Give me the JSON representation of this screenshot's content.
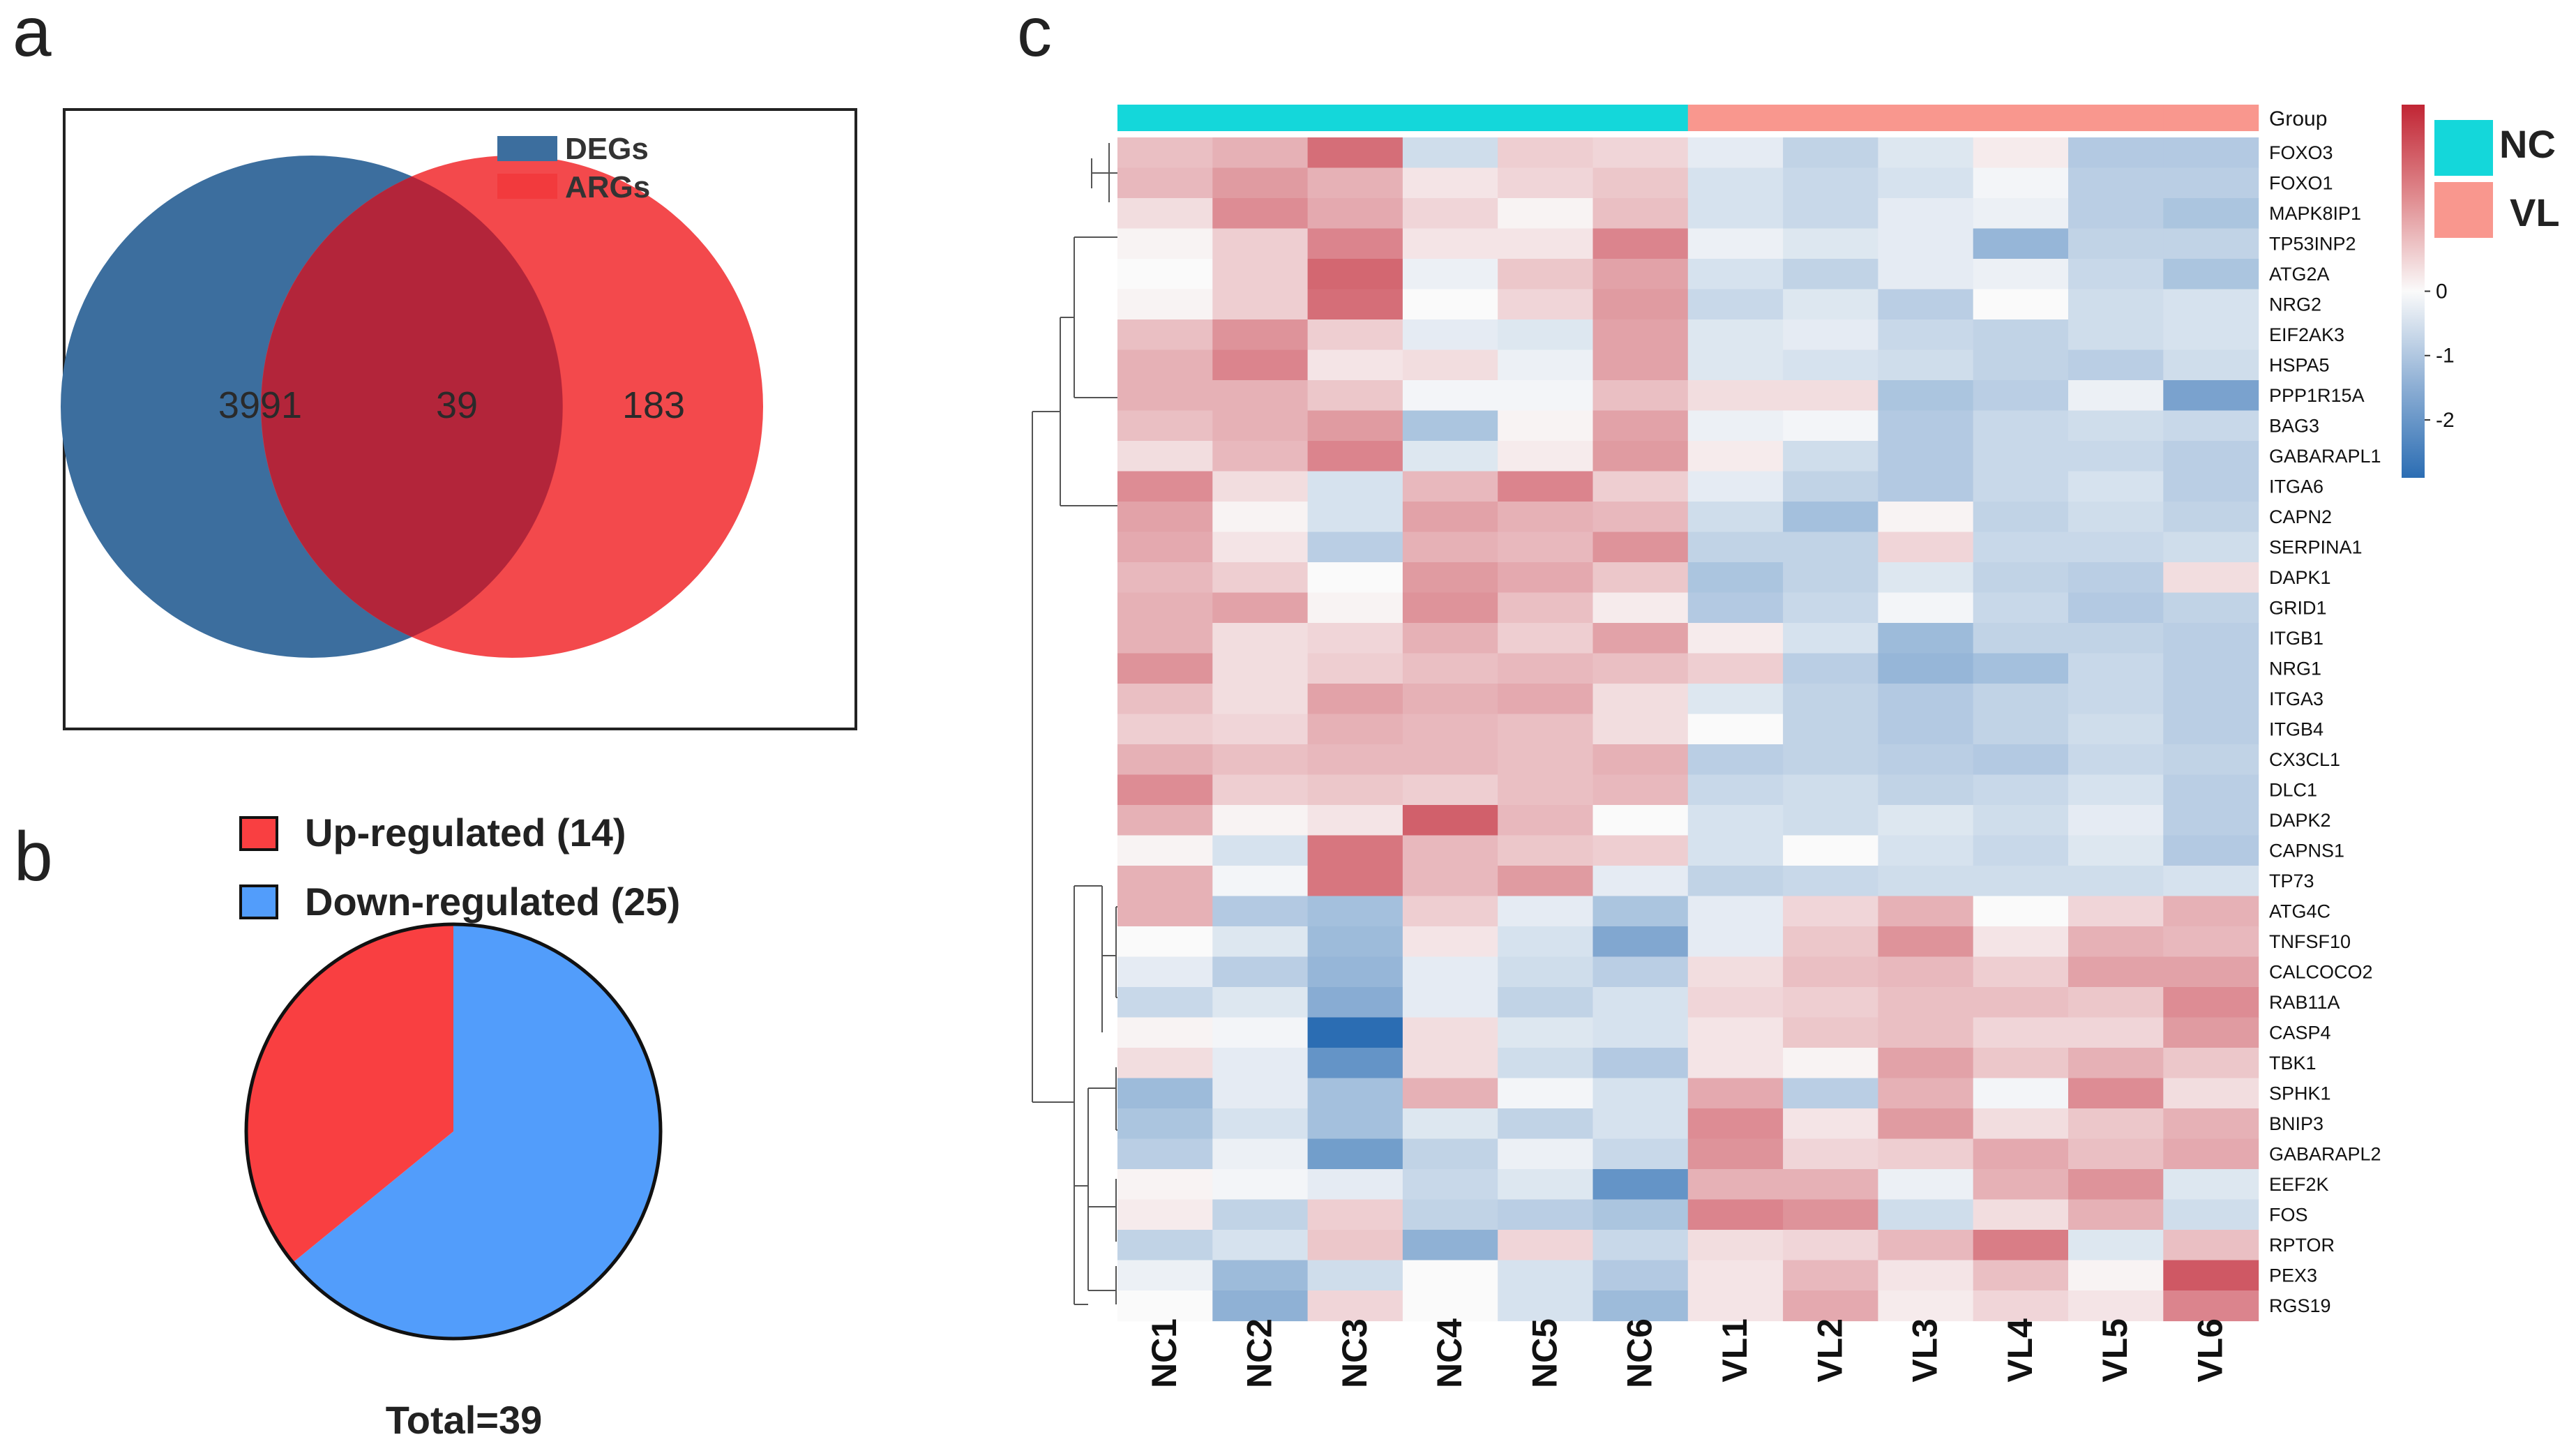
{
  "panels": {
    "a": "a",
    "b": "b",
    "c": "c"
  },
  "chart_data": [
    {
      "type": "venn",
      "panel": "a",
      "sets": [
        {
          "name": "DEGs",
          "color": "#3C6E9E",
          "only": 3991
        },
        {
          "name": "ARGs",
          "color": "#F23A3D",
          "only": 183
        }
      ],
      "intersection": 39
    },
    {
      "type": "pie",
      "panel": "b",
      "labels": [
        "Up-regulated (14)",
        "Down-regulated (25)"
      ],
      "values": [
        14,
        25
      ],
      "colors": [
        "#F93F41",
        "#529DFB"
      ],
      "total_label": "Total=39"
    },
    {
      "type": "heatmap",
      "panel": "c",
      "columns": [
        "NC1",
        "NC2",
        "NC3",
        "NC4",
        "NC5",
        "NC6",
        "VL1",
        "VL2",
        "VL3",
        "VL4",
        "VL5",
        "VL6"
      ],
      "column_groups": [
        "NC",
        "NC",
        "NC",
        "NC",
        "NC",
        "NC",
        "VL",
        "VL",
        "VL",
        "VL",
        "VL",
        "VL"
      ],
      "group_label": "Group",
      "groups": [
        {
          "name": "NC",
          "color": "#14D7DA"
        },
        {
          "name": "VL",
          "color": "#F9978E"
        }
      ],
      "colorbar": {
        "range": [
          -2.9,
          2.9
        ],
        "ticks": [
          0,
          -1,
          -2
        ],
        "tick_labels": [
          "0",
          "-1",
          "-2"
        ]
      },
      "rows": [
        "FOXO3",
        "FOXO1",
        "MAPK8IP1",
        "TP53INP2",
        "ATG2A",
        "NRG2",
        "EIF2AK3",
        "HSPA5",
        "PPP1R15A",
        "BAG3",
        "GABARAPL1",
        "ITGA6",
        "CAPN2",
        "SERPINA1",
        "DAPK1",
        "GRID1",
        "ITGB1",
        "NRG1",
        "ITGA3",
        "ITGB4",
        "CX3CL1",
        "DLC1",
        "DAPK2",
        "CAPNS1",
        "TP73",
        "ATG4C",
        "TNFSF10",
        "CALCOCO2",
        "RAB11A",
        "CASP4",
        "TBK1",
        "SPHK1",
        "BNIP3",
        "GABARAPL2",
        "EEF2K",
        "FOS",
        "RPTOR",
        "PEX3",
        "RGS19"
      ],
      "values": [
        [
          0.8,
          1.0,
          1.9,
          -0.6,
          0.6,
          0.5,
          -0.3,
          -0.8,
          -0.4,
          0.2,
          -1.0,
          -1.0
        ],
        [
          0.9,
          1.3,
          1.0,
          0.3,
          0.5,
          0.7,
          -0.5,
          -0.7,
          -0.5,
          -0.1,
          -0.9,
          -0.9
        ],
        [
          0.4,
          1.5,
          1.1,
          0.5,
          0.1,
          0.8,
          -0.5,
          -0.7,
          -0.3,
          -0.2,
          -0.9,
          -1.1
        ],
        [
          0.1,
          0.6,
          1.6,
          0.3,
          0.3,
          1.6,
          -0.2,
          -0.4,
          -0.3,
          -1.4,
          -0.8,
          -0.8
        ],
        [
          0.0,
          0.6,
          2.0,
          -0.2,
          0.7,
          1.2,
          -0.5,
          -0.8,
          -0.3,
          -0.2,
          -0.7,
          -1.1
        ],
        [
          0.1,
          0.6,
          1.9,
          0.0,
          0.5,
          1.3,
          -0.7,
          -0.4,
          -0.9,
          0.0,
          -0.6,
          -0.5
        ],
        [
          0.8,
          1.4,
          0.6,
          -0.3,
          -0.4,
          1.2,
          -0.4,
          -0.3,
          -0.7,
          -0.8,
          -0.6,
          -0.5
        ],
        [
          1.0,
          1.6,
          0.3,
          0.4,
          -0.2,
          1.2,
          -0.4,
          -0.5,
          -0.6,
          -0.8,
          -0.9,
          -0.6
        ],
        [
          1.0,
          1.0,
          0.7,
          -0.1,
          -0.1,
          0.8,
          0.4,
          0.4,
          -1.1,
          -0.9,
          -0.2,
          -1.8
        ],
        [
          0.8,
          1.0,
          1.3,
          -1.1,
          0.1,
          1.2,
          -0.2,
          -0.1,
          -1.0,
          -0.7,
          -0.6,
          -0.7
        ],
        [
          0.4,
          0.9,
          1.6,
          -0.4,
          0.2,
          1.3,
          0.2,
          -0.6,
          -1.0,
          -0.7,
          -0.7,
          -0.9
        ],
        [
          1.5,
          0.4,
          -0.5,
          0.9,
          1.6,
          0.6,
          -0.3,
          -0.8,
          -1.0,
          -0.7,
          -0.5,
          -0.9
        ],
        [
          1.2,
          0.1,
          -0.5,
          1.2,
          1.0,
          0.9,
          -0.6,
          -1.2,
          0.1,
          -0.8,
          -0.6,
          -0.8
        ],
        [
          1.1,
          0.3,
          -0.9,
          1.0,
          0.9,
          1.4,
          -0.8,
          -0.8,
          0.5,
          -0.7,
          -0.7,
          -0.6
        ],
        [
          0.9,
          0.6,
          0.0,
          1.3,
          1.1,
          0.7,
          -1.1,
          -0.8,
          -0.4,
          -0.8,
          -0.9,
          0.4
        ],
        [
          1.0,
          1.2,
          0.1,
          1.4,
          0.8,
          0.2,
          -1.0,
          -0.7,
          -0.1,
          -0.7,
          -1.0,
          -0.8
        ],
        [
          1.0,
          0.4,
          0.5,
          1.0,
          0.6,
          1.2,
          0.2,
          -0.5,
          -1.3,
          -0.8,
          -0.8,
          -0.9
        ],
        [
          1.4,
          0.4,
          0.6,
          0.8,
          0.9,
          0.8,
          0.6,
          -0.9,
          -1.4,
          -1.2,
          -0.7,
          -0.9
        ],
        [
          0.8,
          0.4,
          1.2,
          1.0,
          1.1,
          0.4,
          -0.4,
          -0.8,
          -1.0,
          -0.8,
          -0.7,
          -0.9
        ],
        [
          0.6,
          0.5,
          1.0,
          0.9,
          0.8,
          0.4,
          0.0,
          -0.8,
          -1.0,
          -0.8,
          -0.6,
          -0.9
        ],
        [
          1.0,
          0.8,
          0.9,
          0.9,
          0.8,
          1.0,
          -0.9,
          -0.8,
          -0.9,
          -1.0,
          -0.7,
          -0.8
        ],
        [
          1.5,
          0.6,
          0.7,
          0.6,
          0.8,
          0.9,
          -0.7,
          -0.6,
          -0.8,
          -0.7,
          -0.5,
          -0.9
        ],
        [
          1.0,
          0.1,
          0.3,
          2.1,
          0.9,
          0.0,
          -0.5,
          -0.6,
          -0.4,
          -0.6,
          -0.3,
          -0.9
        ],
        [
          0.1,
          -0.5,
          1.8,
          0.9,
          0.7,
          0.6,
          -0.5,
          0.0,
          -0.5,
          -0.7,
          -0.4,
          -1.0
        ],
        [
          1.0,
          -0.1,
          1.8,
          0.9,
          1.3,
          -0.3,
          -0.8,
          -0.7,
          -0.6,
          -0.6,
          -0.6,
          -0.5
        ],
        [
          1.0,
          -1.0,
          -1.2,
          0.6,
          -0.3,
          -1.1,
          -0.3,
          0.5,
          1.0,
          0.0,
          0.5,
          1.0
        ],
        [
          0.0,
          -0.4,
          -1.3,
          0.3,
          -0.5,
          -1.7,
          -0.3,
          0.7,
          1.4,
          0.3,
          1.0,
          0.9
        ],
        [
          -0.3,
          -0.9,
          -1.4,
          -0.3,
          -0.6,
          -0.9,
          0.4,
          0.8,
          0.9,
          0.6,
          1.2,
          1.2
        ],
        [
          -0.7,
          -0.4,
          -1.6,
          -0.3,
          -0.8,
          -0.5,
          0.5,
          0.6,
          0.8,
          0.8,
          0.7,
          1.5
        ],
        [
          0.1,
          -0.1,
          -2.9,
          0.4,
          -0.4,
          -0.5,
          0.3,
          0.7,
          0.8,
          0.5,
          0.5,
          1.3
        ],
        [
          0.4,
          -0.3,
          -2.1,
          0.4,
          -0.6,
          -1.0,
          0.3,
          0.1,
          1.2,
          0.7,
          1.0,
          0.7
        ],
        [
          -1.3,
          -0.3,
          -1.2,
          1.0,
          -0.1,
          -0.5,
          1.1,
          -0.9,
          1.0,
          -0.1,
          1.5,
          0.4
        ],
        [
          -1.1,
          -0.5,
          -1.2,
          -0.4,
          -0.8,
          -0.5,
          1.5,
          0.3,
          1.3,
          0.4,
          0.7,
          1.0
        ],
        [
          -0.9,
          -0.2,
          -1.9,
          -0.8,
          -0.2,
          -0.7,
          1.4,
          0.5,
          0.6,
          1.1,
          0.8,
          1.1
        ],
        [
          0.1,
          -0.1,
          -0.3,
          -0.7,
          -0.4,
          -2.1,
          1.0,
          1.0,
          -0.2,
          1.0,
          1.4,
          -0.4
        ],
        [
          0.2,
          -0.8,
          0.6,
          -0.8,
          -0.9,
          -1.1,
          1.6,
          1.4,
          -0.6,
          0.4,
          1.0,
          -0.6
        ],
        [
          -0.8,
          -0.5,
          0.7,
          -1.5,
          0.5,
          -0.7,
          0.4,
          0.5,
          0.9,
          1.7,
          -0.4,
          0.8
        ],
        [
          -0.2,
          -1.3,
          -0.6,
          0.0,
          -0.5,
          -1.0,
          0.3,
          0.9,
          0.3,
          0.8,
          0.1,
          2.2
        ],
        [
          0.0,
          -1.5,
          0.5,
          0.0,
          -0.5,
          -1.3,
          0.3,
          1.1,
          0.2,
          0.5,
          0.3,
          1.6
        ]
      ]
    }
  ]
}
